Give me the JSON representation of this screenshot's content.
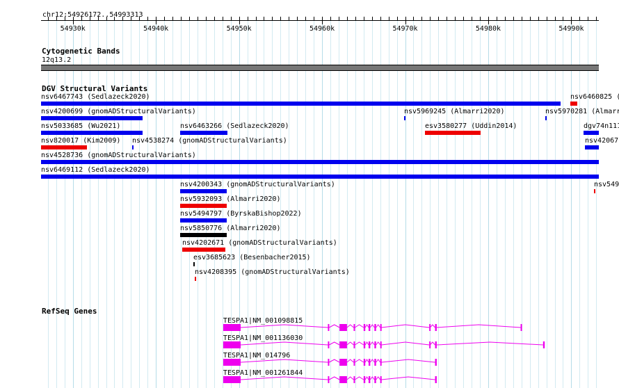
{
  "view": {
    "chrom": "chr12",
    "start": 54926172,
    "end": 54993313,
    "location": "chr12:54926172..54993313",
    "ruler_ticks": [
      "54930k",
      "54940k",
      "54950k",
      "54960k",
      "54970k",
      "54980k",
      "54990k"
    ]
  },
  "colors": {
    "blue": "#0000ee",
    "red": "#ee0000",
    "black": "#000000",
    "gene": "#ee00ee",
    "grid": "#add8e6",
    "band": "#777777"
  },
  "cytoband": {
    "title": "Cytogenetic Bands",
    "band_name": "12q13.2"
  },
  "dgv": {
    "title": "DGV Structural Variants",
    "features": [
      {
        "label": "nsv6467743 (Sedlazeck2020)",
        "start": 54926172,
        "end": 54988700,
        "color": "blue",
        "row": 0
      },
      {
        "label": "nsv6460825 (",
        "start": 54989900,
        "end": 54990750,
        "color": "red",
        "row": 0
      },
      {
        "label": "nsv4200699 (gnomADStructuralVariants)",
        "start": 54926172,
        "end": 54938400,
        "color": "blue",
        "row": 1
      },
      {
        "label": "nsv5969245 (Almarri2020)",
        "start": 54969900,
        "end": 54970100,
        "color": "blue",
        "row": 1
      },
      {
        "label": "nsv5970281 (Almarri2",
        "start": 54986900,
        "end": 54987100,
        "color": "blue",
        "row": 1
      },
      {
        "label": "nsv5033685 (Wu2021)",
        "start": 54926172,
        "end": 54938400,
        "color": "blue",
        "row": 2
      },
      {
        "label": "nsv6463266 (Sedlazeck2020)",
        "start": 54942900,
        "end": 54948600,
        "color": "blue",
        "row": 2
      },
      {
        "label": "esv3580277 (Uddin2014)",
        "start": 54972400,
        "end": 54979100,
        "color": "red",
        "row": 2
      },
      {
        "label": "dgv74n111",
        "start": 54991500,
        "end": 54993313,
        "color": "blue",
        "row": 2
      },
      {
        "label": "nsv820017 (Kim2009)",
        "start": 54926172,
        "end": 54931700,
        "color": "red",
        "row": 3
      },
      {
        "label": "nsv4538274 (gnomADStructuralVariants)",
        "start": 54937100,
        "end": 54937300,
        "color": "blue",
        "row": 3
      },
      {
        "label": "nsv42067",
        "start": 54991600,
        "end": 54993313,
        "color": "blue",
        "row": 3
      },
      {
        "label": "nsv4528736 (gnomADStructuralVariants)",
        "start": 54926172,
        "end": 54993313,
        "color": "blue",
        "row": 4
      },
      {
        "label": "nsv6469112 (Sedlazeck2020)",
        "start": 54926172,
        "end": 54993313,
        "color": "blue",
        "row": 5
      },
      {
        "label": "nsv4200343 (gnomADStructuralVariants)",
        "start": 54942900,
        "end": 54948500,
        "color": "blue",
        "row": 6
      },
      {
        "label": "nsv549",
        "start": 54992700,
        "end": 54992900,
        "color": "red",
        "row": 6
      },
      {
        "label": "nsv5932093 (Almarri2020)",
        "start": 54942900,
        "end": 54948500,
        "color": "red",
        "row": 7
      },
      {
        "label": "nsv5494797 (ByrskaBishop2022)",
        "start": 54942900,
        "end": 54948500,
        "color": "blue",
        "row": 8
      },
      {
        "label": "nsv5850776 (Almarri2020)",
        "start": 54942900,
        "end": 54948500,
        "color": "black",
        "row": 9
      },
      {
        "label": "nsv4202671 (gnomADStructuralVariants)",
        "start": 54943200,
        "end": 54948400,
        "color": "red",
        "row": 10
      },
      {
        "label": "esv3685623 (Besenbacher2015)",
        "start": 54944500,
        "end": 54944600,
        "color": "black",
        "row": 11
      },
      {
        "label": "nsv4208395 (gnomADStructuralVariants)",
        "start": 54944700,
        "end": 54944850,
        "color": "red",
        "row": 12
      }
    ]
  },
  "refseq": {
    "title": "RefSeq Genes",
    "transcripts": [
      {
        "label": "TESPA1|NM_001098815",
        "start": 54948100,
        "end": 54984000,
        "exons": [
          [
            54948100,
            54950200
          ],
          [
            54960700,
            54960850
          ],
          [
            54962100,
            54963000
          ],
          [
            54963800,
            54963950
          ],
          [
            54965000,
            54965200
          ],
          [
            54965600,
            54965800
          ],
          [
            54966300,
            54966500
          ],
          [
            54967000,
            54967150
          ],
          [
            54972900,
            54973000
          ],
          [
            54973600,
            54973800
          ],
          [
            54983900,
            54984000
          ]
        ]
      },
      {
        "label": "TESPA1|NM_001136030",
        "start": 54948100,
        "end": 54986800,
        "exons": [
          [
            54948100,
            54950200
          ],
          [
            54960700,
            54960850
          ],
          [
            54962100,
            54963000
          ],
          [
            54963800,
            54963950
          ],
          [
            54965000,
            54965200
          ],
          [
            54965600,
            54965800
          ],
          [
            54966300,
            54966500
          ],
          [
            54967000,
            54967150
          ],
          [
            54972900,
            54973000
          ],
          [
            54973600,
            54973800
          ],
          [
            54986600,
            54986800
          ]
        ]
      },
      {
        "label": "TESPA1|NM_014796",
        "start": 54948100,
        "end": 54973800,
        "exons": [
          [
            54948100,
            54950200
          ],
          [
            54960700,
            54960850
          ],
          [
            54962100,
            54963000
          ],
          [
            54963800,
            54963950
          ],
          [
            54965000,
            54965200
          ],
          [
            54965600,
            54965800
          ],
          [
            54966300,
            54966500
          ],
          [
            54967000,
            54967150
          ],
          [
            54973600,
            54973800
          ]
        ]
      },
      {
        "label": "TESPA1|NM_001261844",
        "start": 54948100,
        "end": 54973800,
        "exons": [
          [
            54948100,
            54950200
          ],
          [
            54960700,
            54960850
          ],
          [
            54962100,
            54963000
          ],
          [
            54963800,
            54963950
          ],
          [
            54965000,
            54965200
          ],
          [
            54965600,
            54965800
          ],
          [
            54966300,
            54966500
          ],
          [
            54967000,
            54967150
          ],
          [
            54973600,
            54973800
          ]
        ]
      }
    ]
  }
}
